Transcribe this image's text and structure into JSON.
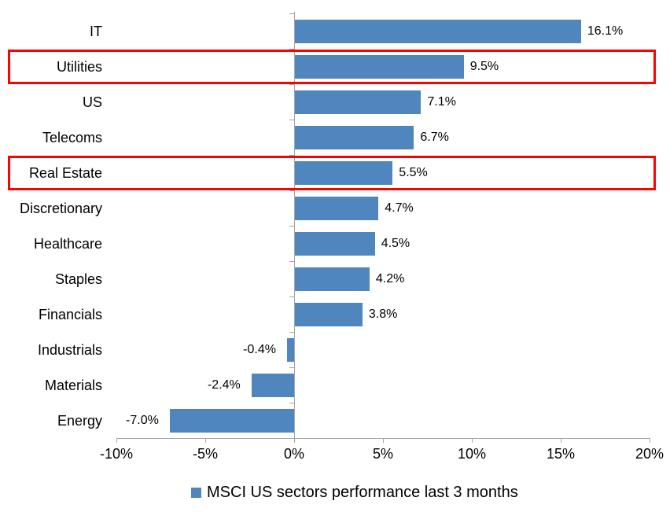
{
  "chart_data": {
    "type": "bar",
    "orientation": "horizontal",
    "title": "",
    "categories": [
      "IT",
      "Utilities",
      "US",
      "Telecoms",
      "Real Estate",
      "Discretionary",
      "Healthcare",
      "Staples",
      "Financials",
      "Industrials",
      "Materials",
      "Energy"
    ],
    "values": [
      16.1,
      9.5,
      7.1,
      6.7,
      5.5,
      4.7,
      4.5,
      4.2,
      3.8,
      -0.4,
      -2.4,
      -7.0
    ],
    "value_labels": [
      "16.1%",
      "9.5%",
      "7.1%",
      "6.7%",
      "5.5%",
      "4.7%",
      "4.5%",
      "4.2%",
      "3.8%",
      "-0.4%",
      "-2.4%",
      "-7.0%"
    ],
    "highlighted_categories": [
      "Utilities",
      "Real Estate"
    ],
    "x_axis": {
      "min": -10,
      "max": 20,
      "ticks": [
        -10,
        -5,
        0,
        5,
        10,
        15,
        20
      ],
      "tick_labels": [
        "-10%",
        "-5%",
        "0%",
        "5%",
        "10%",
        "15%",
        "20%"
      ]
    },
    "grid": false,
    "legend": {
      "position": "bottom",
      "label": "MSCI US sectors performance last 3 months"
    },
    "colors": {
      "series": "#4E86BD",
      "highlight_border": "#FF0000",
      "axis": "#A6A6A6",
      "text": "#000000",
      "background": "#FFFFFF"
    }
  }
}
